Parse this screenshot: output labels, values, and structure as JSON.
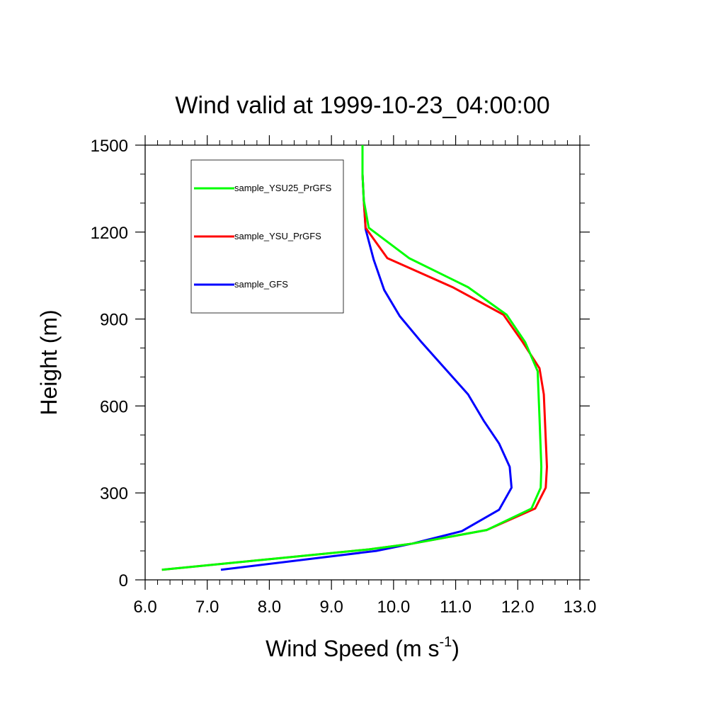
{
  "chart_data": {
    "type": "line",
    "title": "Wind valid at 1999-10-23_04:00:00",
    "xlabel": "Wind Speed (m s",
    "xlabel_sup": "-1",
    "xlabel_end": ")",
    "ylabel": "Height (m)",
    "xlim": [
      6.0,
      13.0
    ],
    "ylim": [
      0,
      1500
    ],
    "x_ticks": [
      6.0,
      7.0,
      8.0,
      9.0,
      10.0,
      11.0,
      12.0,
      13.0
    ],
    "x_tick_labels": [
      "6.0",
      "7.0",
      "8.0",
      "9.0",
      "10.0",
      "11.0",
      "12.0",
      "13.0"
    ],
    "y_ticks": [
      0,
      300,
      600,
      900,
      1200,
      1500
    ],
    "y_tick_labels": [
      "0",
      "300",
      "600",
      "900",
      "1200",
      "1500"
    ],
    "legend_position": "top-left",
    "series": [
      {
        "name": "sample_YSU25_PrGFS",
        "color": "#00ff00",
        "points": [
          [
            6.27,
            35
          ],
          [
            9.6,
            105
          ],
          [
            10.3,
            125
          ],
          [
            11.5,
            172
          ],
          [
            12.22,
            246
          ],
          [
            12.37,
            318
          ],
          [
            12.38,
            390
          ],
          [
            12.35,
            560
          ],
          [
            12.32,
            720
          ],
          [
            12.12,
            820
          ],
          [
            11.82,
            915
          ],
          [
            11.2,
            1010
          ],
          [
            10.25,
            1110
          ],
          [
            9.6,
            1215
          ],
          [
            9.52,
            1310
          ],
          [
            9.5,
            1400
          ],
          [
            9.5,
            1500
          ]
        ]
      },
      {
        "name": "sample_YSU_PrGFS",
        "color": "#ff0000",
        "points": [
          [
            6.27,
            35
          ],
          [
            9.6,
            105
          ],
          [
            10.3,
            125
          ],
          [
            11.5,
            172
          ],
          [
            12.28,
            246
          ],
          [
            12.45,
            318
          ],
          [
            12.47,
            390
          ],
          [
            12.42,
            640
          ],
          [
            12.35,
            730
          ],
          [
            12.08,
            820
          ],
          [
            11.77,
            915
          ],
          [
            10.95,
            1010
          ],
          [
            9.9,
            1110
          ],
          [
            9.55,
            1215
          ],
          [
            9.52,
            1310
          ],
          [
            9.5,
            1400
          ],
          [
            9.5,
            1500
          ]
        ]
      },
      {
        "name": "sample_GFS",
        "color": "#0000ff",
        "points": [
          [
            7.22,
            35
          ],
          [
            9.72,
            100
          ],
          [
            10.3,
            125
          ],
          [
            11.1,
            168
          ],
          [
            11.7,
            242
          ],
          [
            11.9,
            318
          ],
          [
            11.87,
            390
          ],
          [
            11.7,
            470
          ],
          [
            11.45,
            550
          ],
          [
            11.2,
            640
          ],
          [
            10.45,
            820
          ],
          [
            10.1,
            910
          ],
          [
            9.85,
            1000
          ],
          [
            9.68,
            1105
          ],
          [
            9.55,
            1210
          ],
          [
            9.52,
            1310
          ],
          [
            9.5,
            1400
          ],
          [
            9.5,
            1500
          ]
        ]
      }
    ]
  }
}
